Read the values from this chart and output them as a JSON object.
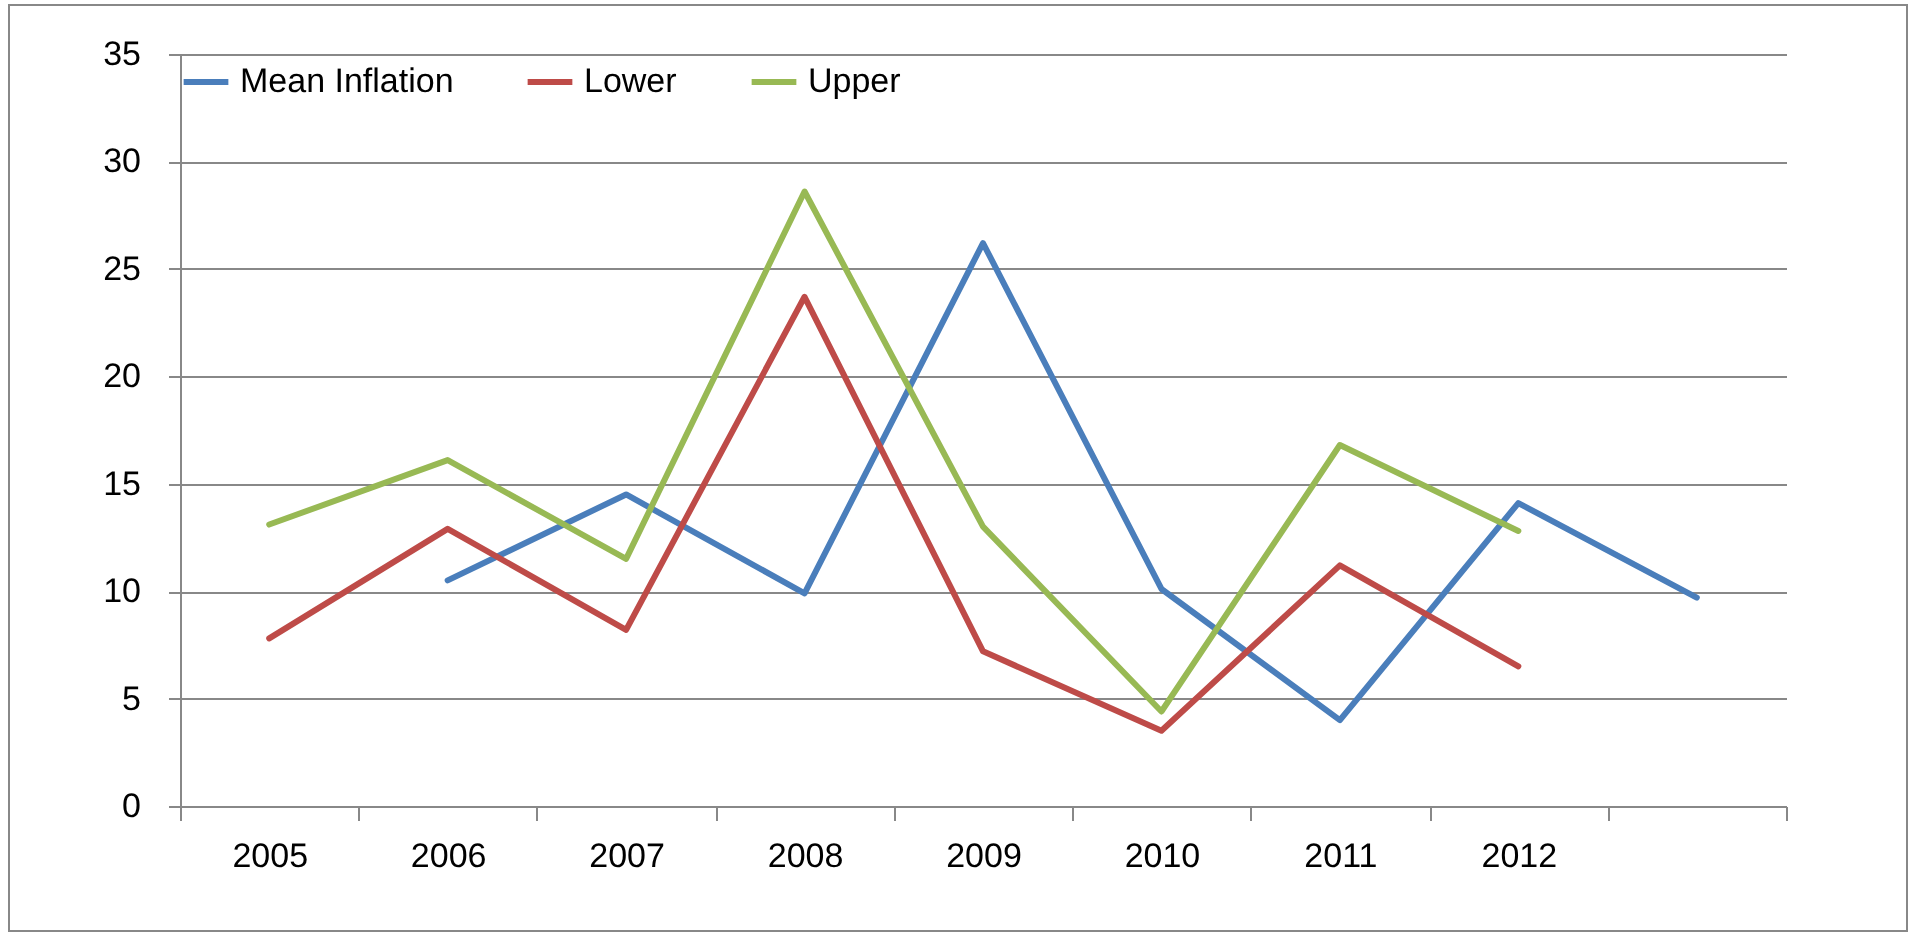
{
  "chart_data": {
    "type": "line",
    "categories": [
      "2005",
      "2006",
      "2007",
      "2008",
      "2009",
      "2010",
      "2011",
      "2012",
      null
    ],
    "series": [
      {
        "name": "Mean Inflation",
        "color": "#4a7ebb",
        "values": [
          null,
          10.5,
          14.5,
          9.9,
          26.2,
          10.1,
          4.0,
          14.1,
          9.7
        ]
      },
      {
        "name": "Lower",
        "color": "#be4b48",
        "values": [
          7.8,
          12.9,
          8.2,
          23.7,
          7.2,
          3.5,
          11.2,
          6.5,
          null
        ]
      },
      {
        "name": "Upper",
        "color": "#98b954",
        "values": [
          13.1,
          16.1,
          11.5,
          28.6,
          13.0,
          4.4,
          16.8,
          12.8,
          null
        ]
      }
    ],
    "ylim": [
      0,
      35
    ],
    "yticks": [
      0,
      5,
      10,
      15,
      20,
      25,
      30,
      35
    ],
    "grid": "y",
    "legend": "top",
    "marker": "none",
    "line_style": "solid"
  }
}
